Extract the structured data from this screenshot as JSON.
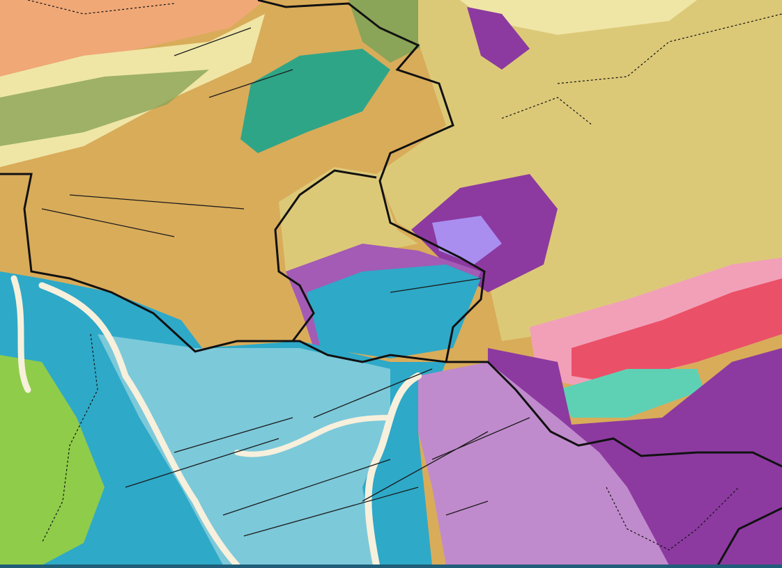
{
  "map": {
    "colors": {
      "orange_nw": "#f0a877",
      "tan": "#d9ac5a",
      "khaki": "#dcc978",
      "pale_yellow": "#efe6a6",
      "olive_green": "#8aa458",
      "teal_green": "#2fa587",
      "cyan_dark": "#2ea9c8",
      "cyan_light": "#7cc9da",
      "blue_mid": "#4ab6d2",
      "purple_dark": "#8c3aa0",
      "purple_mid": "#a35bb5",
      "lilac": "#c08bcc",
      "lavender": "#a98ef0",
      "lime_green": "#8fcc4a",
      "pink": "#f2a0b8",
      "red_pink": "#ea5067",
      "aqua": "#5ed1b5",
      "river_cream": "#f7f0dc",
      "border_black": "#111111",
      "fault_black": "#1a1a1a",
      "strip": "#1f5d78"
    },
    "line_types": [
      "province-border",
      "county-border",
      "fault-line",
      "river"
    ]
  }
}
